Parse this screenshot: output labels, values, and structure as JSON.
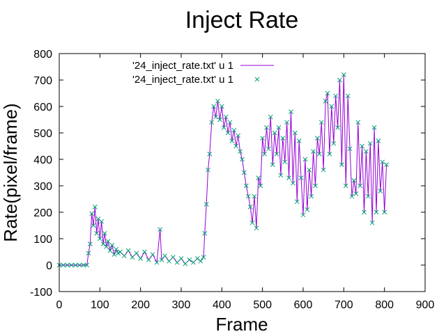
{
  "chart_data": {
    "type": "line",
    "title": "Inject Rate",
    "xlabel": "Frame",
    "ylabel": "Rate(pixel/frame)",
    "xlim": [
      0,
      900
    ],
    "ylim": [
      -100,
      800
    ],
    "x_ticks": [
      "0",
      "100",
      "200",
      "300",
      "400",
      "500",
      "600",
      "700",
      "800",
      "900"
    ],
    "y_ticks": [
      "-100",
      "0",
      "100",
      "200",
      "300",
      "400",
      "500",
      "600",
      "700",
      "800"
    ],
    "legend_position": "top-left",
    "grid": false,
    "series": [
      {
        "name": "'24_inject_rate.txt' u 1",
        "style": "line",
        "color": "#9400d3",
        "x": [
          0,
          10,
          20,
          30,
          40,
          50,
          60,
          68,
          72,
          76,
          80,
          84,
          88,
          92,
          96,
          100,
          104,
          108,
          112,
          116,
          120,
          125,
          130,
          135,
          140,
          145,
          150,
          160,
          170,
          180,
          190,
          200,
          210,
          220,
          230,
          240,
          248,
          252,
          260,
          270,
          280,
          290,
          300,
          310,
          320,
          330,
          340,
          348,
          355,
          358,
          362,
          366,
          370,
          375,
          380,
          385,
          390,
          395,
          400,
          405,
          410,
          415,
          420,
          425,
          430,
          435,
          440,
          445,
          450,
          455,
          460,
          465,
          470,
          475,
          480,
          485,
          490,
          495,
          500,
          505,
          510,
          515,
          520,
          525,
          530,
          535,
          540,
          545,
          550,
          555,
          560,
          565,
          570,
          575,
          580,
          585,
          590,
          595,
          600,
          605,
          610,
          615,
          620,
          625,
          630,
          635,
          640,
          645,
          650,
          655,
          660,
          665,
          670,
          675,
          680,
          685,
          690,
          695,
          700,
          705,
          710,
          715,
          720,
          725,
          730,
          735,
          740,
          745,
          750,
          755,
          760,
          765,
          770,
          775,
          780,
          785,
          790,
          795,
          800,
          805
        ],
        "y": [
          0,
          0,
          0,
          0,
          0,
          0,
          0,
          0,
          45,
          80,
          195,
          150,
          220,
          120,
          175,
          100,
          165,
          80,
          120,
          70,
          90,
          55,
          75,
          40,
          60,
          45,
          50,
          35,
          55,
          30,
          45,
          25,
          50,
          20,
          40,
          10,
          135,
          20,
          35,
          15,
          30,
          10,
          25,
          5,
          20,
          10,
          25,
          15,
          30,
          120,
          230,
          360,
          420,
          540,
          600,
          560,
          620,
          550,
          600,
          520,
          560,
          500,
          540,
          470,
          510,
          450,
          490,
          430,
          400,
          350,
          300,
          260,
          220,
          160,
          260,
          140,
          330,
          300,
          480,
          420,
          520,
          440,
          560,
          380,
          500,
          420,
          520,
          340,
          480,
          390,
          540,
          330,
          580,
          310,
          500,
          240,
          470,
          330,
          190,
          400,
          210,
          360,
          260,
          430,
          300,
          480,
          420,
          540,
          360,
          620,
          650,
          420,
          600,
          460,
          640,
          520,
          700,
          380,
          720,
          300,
          640,
          440,
          260,
          320,
          270,
          540,
          300,
          450,
          200,
          430,
          260,
          460,
          160,
          520,
          200,
          470,
          280,
          390,
          200,
          380
        ]
      },
      {
        "name": "'24_inject_rate.txt' u 1",
        "style": "points",
        "marker": "x",
        "color": "#009e73"
      }
    ]
  }
}
